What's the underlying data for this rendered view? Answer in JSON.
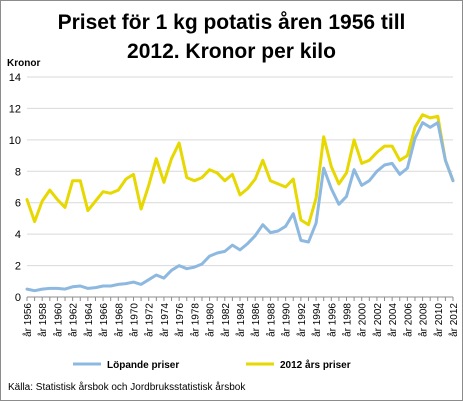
{
  "chart_data": {
    "type": "line",
    "title_lines": [
      "Priset för 1 kg potatis åren 1956 till",
      "2012. Kronor per kilo"
    ],
    "ylabel": "Kronor",
    "xlabel": "",
    "ylim": [
      0,
      14
    ],
    "yticks": [
      0,
      2,
      4,
      6,
      8,
      10,
      12,
      14
    ],
    "grid": true,
    "legend_position": "bottom",
    "source": "Källa: Statistisk årsbok och Jordbruksstatistisk årsbok",
    "x": [
      1956,
      1957,
      1958,
      1959,
      1960,
      1961,
      1962,
      1963,
      1964,
      1965,
      1966,
      1967,
      1968,
      1969,
      1970,
      1971,
      1972,
      1973,
      1974,
      1975,
      1976,
      1977,
      1978,
      1979,
      1980,
      1981,
      1982,
      1983,
      1984,
      1985,
      1986,
      1987,
      1988,
      1989,
      1990,
      1991,
      1992,
      1993,
      1994,
      1995,
      1996,
      1997,
      1998,
      1999,
      2000,
      2001,
      2002,
      2003,
      2004,
      2005,
      2006,
      2007,
      2008,
      2009,
      2010,
      2011,
      2012
    ],
    "xtick_labels": [
      "år 1956",
      "år 1958",
      "år 1960",
      "år 1962",
      "år 1964",
      "år 1966",
      "år 1968",
      "år 1970",
      "år 1972",
      "år 1974",
      "år 1976",
      "år 1978",
      "år 1980",
      "år 1982",
      "år 1984",
      "år 1986",
      "år 1988",
      "år 1990",
      "år 1992",
      "år 1994",
      "år 1996",
      "år 1998",
      "år 2000",
      "år 2002",
      "år 2004",
      "år 2006",
      "år 2008",
      "år 2010",
      "år 2012"
    ],
    "series": [
      {
        "name": "Löpande priser",
        "color": "#8db8e0",
        "values": [
          0.5,
          0.4,
          0.5,
          0.55,
          0.55,
          0.5,
          0.65,
          0.7,
          0.55,
          0.6,
          0.7,
          0.7,
          0.8,
          0.85,
          0.95,
          0.8,
          1.1,
          1.4,
          1.2,
          1.7,
          2.0,
          1.8,
          1.9,
          2.1,
          2.6,
          2.8,
          2.9,
          3.3,
          3.0,
          3.4,
          3.9,
          4.6,
          4.1,
          4.2,
          4.5,
          5.3,
          3.6,
          3.5,
          4.7,
          8.2,
          6.9,
          5.9,
          6.4,
          8.1,
          7.1,
          7.4,
          8.0,
          8.4,
          8.5,
          7.8,
          8.2,
          10.1,
          11.1,
          10.8,
          11.1,
          8.7,
          7.4
        ]
      },
      {
        "name": "2012 års priser",
        "color": "#e6d800",
        "values": [
          6.2,
          4.8,
          6.1,
          6.8,
          6.2,
          5.7,
          7.4,
          7.4,
          5.5,
          6.1,
          6.7,
          6.6,
          6.8,
          7.5,
          7.8,
          5.6,
          7.1,
          8.8,
          7.3,
          8.8,
          9.8,
          7.6,
          7.4,
          7.6,
          8.1,
          7.9,
          7.4,
          7.8,
          6.5,
          6.9,
          7.5,
          8.7,
          7.4,
          7.2,
          7.0,
          7.5,
          4.9,
          4.6,
          6.3,
          10.2,
          8.3,
          7.2,
          7.9,
          10.0,
          8.5,
          8.7,
          9.2,
          9.6,
          9.6,
          8.7,
          9.0,
          10.8,
          11.6,
          11.4,
          11.5,
          8.7,
          7.4
        ]
      }
    ]
  }
}
